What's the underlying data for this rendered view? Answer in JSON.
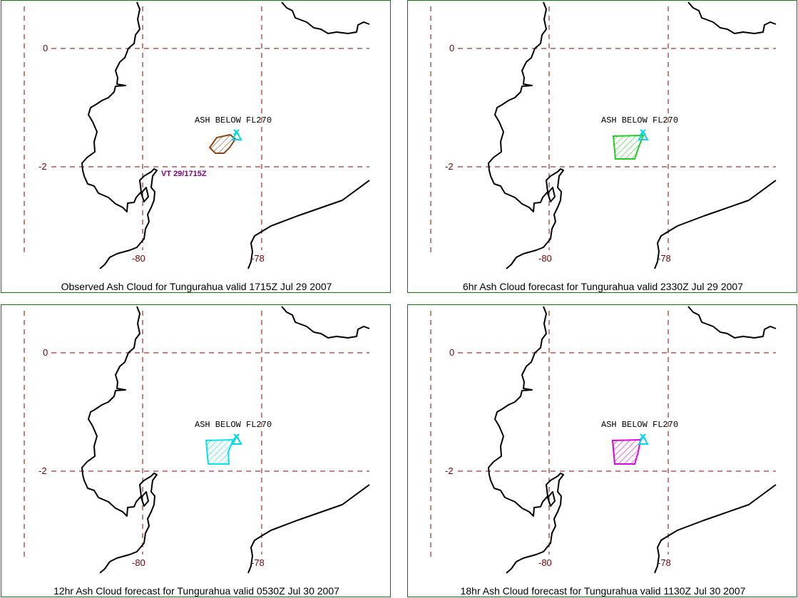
{
  "colors": {
    "frame": "#0a7a0a",
    "grid": "#8b0000",
    "grid_label": "#7a0000",
    "coast": "#000000",
    "volcano_marker": "#00d8e8",
    "vt_label": "#800080"
  },
  "grid": {
    "lat_labels": [
      "0",
      "-2"
    ],
    "lon_labels": [
      "-80",
      "-78"
    ]
  },
  "panels": [
    {
      "caption": "Observed Ash Cloud for Tungurahua valid 1715Z Jul 29 2007",
      "ash_label": "ASH BELOW FL270",
      "cloud_color": "#8b4513",
      "vt_label": "VT 29/1715Z",
      "cloud_icon": "hatched-polygon"
    },
    {
      "caption": "6hr Ash Cloud forecast for Tungurahua valid 2330Z Jul 29 2007",
      "ash_label": "ASH BELOW FL270",
      "cloud_color": "#22cc22",
      "cloud_icon": "hatched-polygon"
    },
    {
      "caption": "12hr Ash Cloud forecast for Tungurahua valid 0530Z Jul 30 2007",
      "ash_label": "ASH BELOW FL270",
      "cloud_color": "#00e5ee",
      "cloud_icon": "hatched-polygon"
    },
    {
      "caption": "18hr Ash Cloud forecast for Tungurahua valid 1130Z Jul 30 2007",
      "ash_label": "ASH BELOW FL270",
      "cloud_color": "#e000e0",
      "cloud_icon": "hatched-polygon"
    }
  ]
}
